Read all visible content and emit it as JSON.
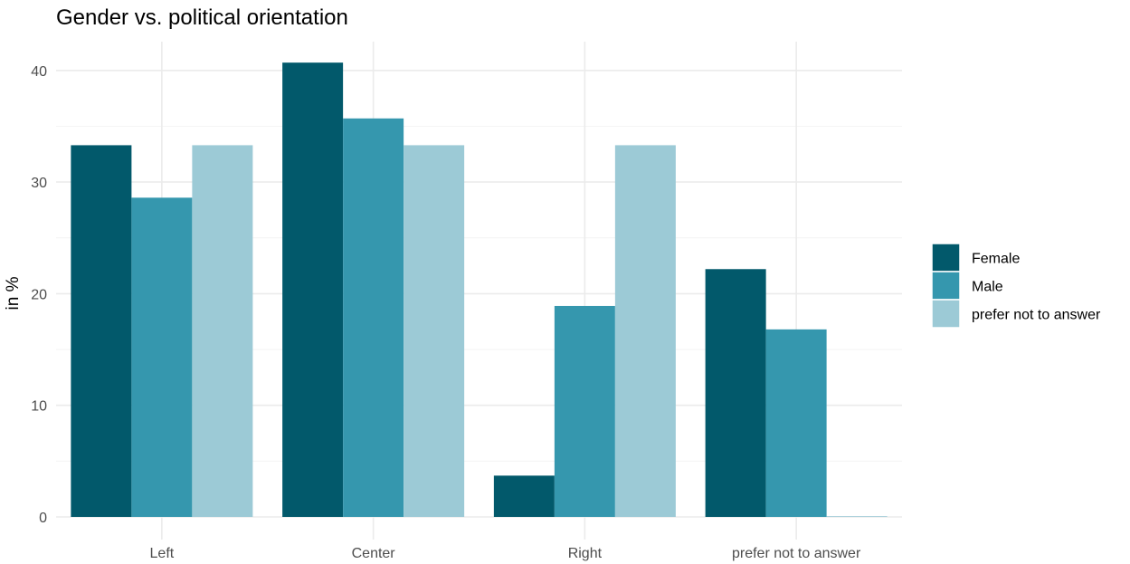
{
  "chart_data": {
    "type": "bar",
    "title": "Gender vs. political orientation",
    "xlabel": "",
    "ylabel": "in %",
    "categories": [
      "Left",
      "Center",
      "Right",
      "prefer not to answer"
    ],
    "series": [
      {
        "name": "Female",
        "color": "#02596b",
        "values": [
          33.3,
          40.7,
          3.7,
          22.2
        ]
      },
      {
        "name": "Male",
        "color": "#3597ae",
        "values": [
          28.6,
          35.7,
          18.9,
          16.8
        ]
      },
      {
        "name": "prefer not to answer",
        "color": "#9ccad6",
        "values": [
          33.3,
          33.3,
          33.3,
          0
        ]
      }
    ],
    "ylim": [
      0,
      42
    ],
    "yticks": [
      0,
      10,
      20,
      30,
      40
    ],
    "grid": true,
    "legend_position": "right"
  }
}
